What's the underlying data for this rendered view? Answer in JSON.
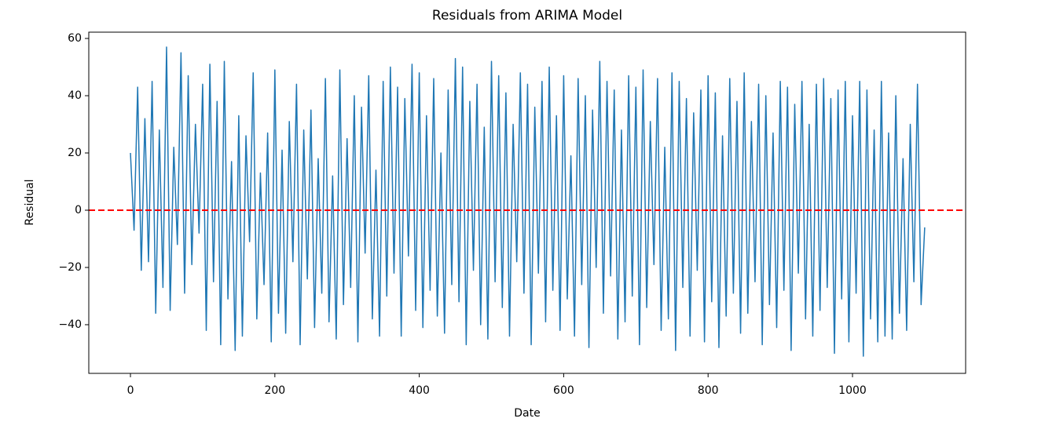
{
  "chart_data": {
    "type": "line",
    "title": "Residuals from ARIMA Model",
    "xlabel": "Date",
    "ylabel": "Residual",
    "x": [
      0,
      5,
      10,
      15,
      20,
      25,
      30,
      35,
      40,
      45,
      50,
      55,
      60,
      65,
      70,
      75,
      80,
      85,
      90,
      95,
      100,
      105,
      110,
      115,
      120,
      125,
      130,
      135,
      140,
      145,
      150,
      155,
      160,
      165,
      170,
      175,
      180,
      185,
      190,
      195,
      200,
      205,
      210,
      215,
      220,
      225,
      230,
      235,
      240,
      245,
      250,
      255,
      260,
      265,
      270,
      275,
      280,
      285,
      290,
      295,
      300,
      305,
      310,
      315,
      320,
      325,
      330,
      335,
      340,
      345,
      350,
      355,
      360,
      365,
      370,
      375,
      380,
      385,
      390,
      395,
      400,
      405,
      410,
      415,
      420,
      425,
      430,
      435,
      440,
      445,
      450,
      455,
      460,
      465,
      470,
      475,
      480,
      485,
      490,
      495,
      500,
      505,
      510,
      515,
      520,
      525,
      530,
      535,
      540,
      545,
      550,
      555,
      560,
      565,
      570,
      575,
      580,
      585,
      590,
      595,
      600,
      605,
      610,
      615,
      620,
      625,
      630,
      635,
      640,
      645,
      650,
      655,
      660,
      665,
      670,
      675,
      680,
      685,
      690,
      695,
      700,
      705,
      710,
      715,
      720,
      725,
      730,
      735,
      740,
      745,
      750,
      755,
      760,
      765,
      770,
      775,
      780,
      785,
      790,
      795,
      800,
      805,
      810,
      815,
      820,
      825,
      830,
      835,
      840,
      845,
      850,
      855,
      860,
      865,
      870,
      875,
      880,
      885,
      890,
      895,
      900,
      905,
      910,
      915,
      920,
      925,
      930,
      935,
      940,
      945,
      950,
      955,
      960,
      965,
      970,
      975,
      980,
      985,
      990,
      995,
      1000,
      1005,
      1010,
      1015,
      1020,
      1025,
      1030,
      1035,
      1040,
      1045,
      1050,
      1055,
      1060,
      1065,
      1070,
      1075,
      1080,
      1085,
      1090,
      1095,
      1100
    ],
    "series": [
      {
        "name": "Residual",
        "color": "#1f77b4",
        "values": [
          20,
          -7,
          43,
          -21,
          32,
          -18,
          45,
          -36,
          28,
          -27,
          57,
          -35,
          22,
          -12,
          55,
          -29,
          47,
          -19,
          30,
          -8,
          44,
          -42,
          51,
          -25,
          38,
          -47,
          52,
          -31,
          17,
          -49,
          33,
          -44,
          26,
          -11,
          48,
          -38,
          13,
          -26,
          27,
          -46,
          49,
          -36,
          21,
          -43,
          31,
          -18,
          44,
          -47,
          28,
          -24,
          35,
          -41,
          18,
          -29,
          46,
          -39,
          12,
          -45,
          49,
          -33,
          25,
          -27,
          40,
          -46,
          36,
          -15,
          47,
          -38,
          14,
          -44,
          45,
          -30,
          50,
          -22,
          43,
          -44,
          39,
          -16,
          51,
          -35,
          48,
          -41,
          33,
          -28,
          46,
          -37,
          20,
          -43,
          42,
          -26,
          53,
          -32,
          50,
          -47,
          38,
          -21,
          44,
          -40,
          29,
          -45,
          52,
          -25,
          47,
          -34,
          41,
          -44,
          30,
          -18,
          48,
          -29,
          44,
          -47,
          36,
          -22,
          45,
          -39,
          50,
          -28,
          33,
          -42,
          47,
          -31,
          19,
          -44,
          46,
          -26,
          40,
          -48,
          35,
          -20,
          52,
          -36,
          45,
          -23,
          42,
          -45,
          28,
          -39,
          47,
          -30,
          43,
          -47,
          49,
          -34,
          31,
          -19,
          46,
          -42,
          22,
          -38,
          48,
          -49,
          45,
          -27,
          39,
          -44,
          34,
          -21,
          42,
          -46,
          47,
          -32,
          41,
          -48,
          26,
          -37,
          46,
          -29,
          38,
          -43,
          48,
          -36,
          31,
          -25,
          44,
          -47,
          40,
          -33,
          27,
          -41,
          45,
          -28,
          43,
          -49,
          37,
          -22,
          45,
          -38,
          30,
          -44,
          44,
          -35,
          46,
          -27,
          39,
          -50,
          42,
          -31,
          45,
          -46,
          33,
          -29,
          45,
          -51,
          42,
          -38,
          28,
          -46,
          45,
          -44,
          27,
          -45,
          40,
          -36,
          18,
          -42,
          30,
          -25,
          44,
          -33,
          -6
        ]
      }
    ],
    "hline": {
      "value": 0,
      "color": "#ff0000"
    },
    "xlim": [
      -57.7,
      1156.7
    ],
    "ylim": [
      -57,
      62.2
    ],
    "xticks": [
      0,
      200,
      400,
      600,
      800,
      1000
    ],
    "yticks": [
      {
        "value": -40,
        "label": "−40"
      },
      {
        "value": -20,
        "label": "−20"
      },
      0,
      20,
      40,
      60
    ]
  }
}
